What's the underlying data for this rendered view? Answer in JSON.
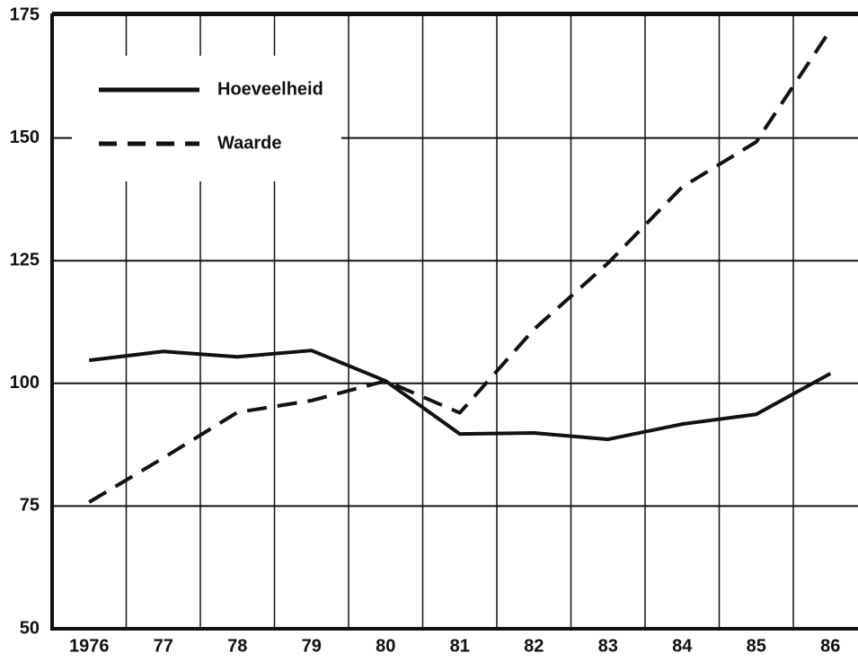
{
  "chart_data": {
    "type": "line",
    "categories": [
      "1976",
      "77",
      "78",
      "79",
      "80",
      "81",
      "82",
      "83",
      "84",
      "85",
      "86"
    ],
    "series": [
      {
        "name": "Hoeveelheid",
        "color": "#111111",
        "linestyle": "solid",
        "values": [
          104.7,
          106.5,
          105.4,
          106.7,
          100.5,
          89.7,
          89.9,
          88.6,
          91.7,
          93.7,
          102
        ]
      },
      {
        "name": "Waarde",
        "color": "#111111",
        "linestyle": "dashed",
        "values": [
          75.8,
          84.8,
          94.1,
          96.5,
          100.5,
          94,
          111,
          124.5,
          140,
          149.2,
          172
        ]
      }
    ],
    "ylim": [
      50,
      175
    ],
    "yticks": [
      50,
      75,
      100,
      125,
      150,
      175
    ],
    "grid": true,
    "legend": "upper left"
  }
}
